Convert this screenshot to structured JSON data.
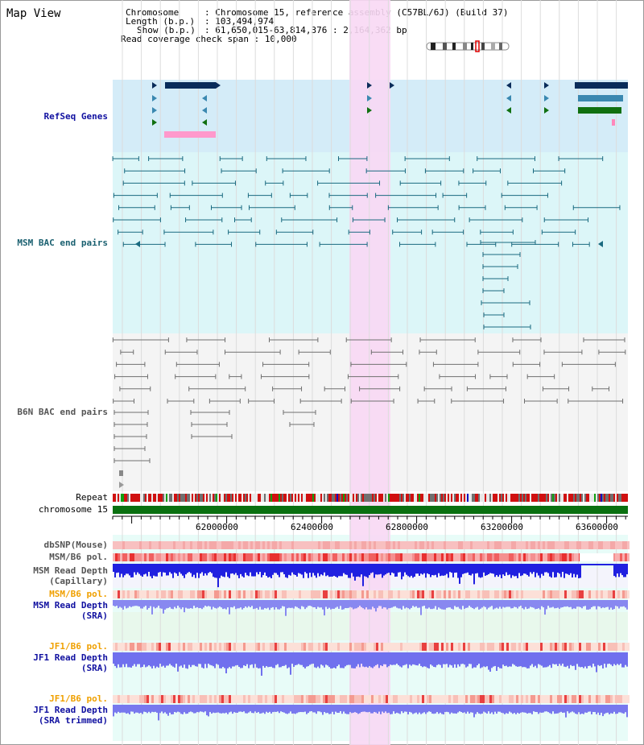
{
  "title": "Map View",
  "info": {
    "chromosome_label": "Chromosome",
    "chromosome_value": "Chromosome 15, reference assembly (C57BL/6J) (Build 37)",
    "length_label": "Length (b.p.)",
    "length_value": "103,494,974",
    "show_label": "Show (b.p.)",
    "show_value": "61,650,015-63,814,376 : 2,164,362 bp",
    "coverage_label": "Read coverage check span",
    "coverage_value": "10,000"
  },
  "tracks": {
    "refseq": "RefSeq Genes",
    "msm_bac": "MSM BAC end pairs",
    "b6n_bac": "B6N BAC end pairs",
    "repeat": "Repeat",
    "chromosome": "chromosome 15",
    "dbsnp": "dbSNP(Mouse)",
    "msm_b6_pol_1": "MSM/B6 pol.",
    "msm_read_depth_cap_1": "MSM Read Depth",
    "msm_read_depth_cap_2": "(Capillary)",
    "msm_b6_pol_2": "MSM/B6 pol.",
    "msm_read_depth_sra_1": "MSM Read Depth",
    "msm_read_depth_sra_2": "(SRA)",
    "jf1_b6_pol_1": "JF1/B6 pol.",
    "jf1_read_depth_sra_1": "JF1 Read Depth",
    "jf1_read_depth_sra_2": "(SRA)",
    "jf1_b6_pol_2": "JF1/B6 pol.",
    "jf1_read_depth_trim_1": "JF1 Read Depth",
    "jf1_read_depth_trim_2": "(SRA trimmed)"
  },
  "axis": {
    "ticks": [
      "62000000",
      "62400000",
      "62800000",
      "63200000",
      "63600000"
    ]
  },
  "colors": {
    "highlight": "#f8d8f4",
    "refseq_bg": "#d4ecf8",
    "msm_bg": "#dcf6f8",
    "b6n_bg": "#f4f4f4",
    "chromosome_bar": "#0a7010",
    "gene_dark": "#0a2c5a",
    "gene_mid": "#3a88b0",
    "gene_green": "#107010",
    "msm_bac": "#1a6a80",
    "b6n_bac": "#707070",
    "depth_blue": "#2020e0",
    "depth_lightblue": "#8888f0",
    "pol_red": "#f03030"
  }
}
